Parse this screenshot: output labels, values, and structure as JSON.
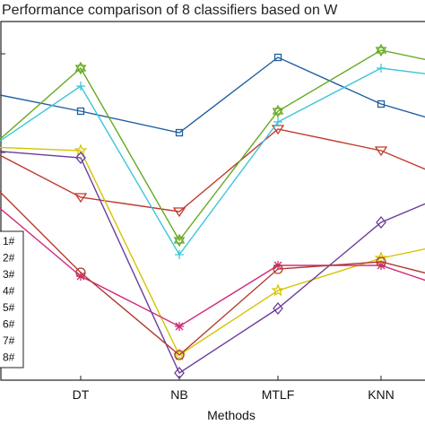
{
  "chart_data": {
    "type": "line",
    "title": "Performance comparison of 8 classifiers  based on W",
    "xlabel": "Methods",
    "ylabel": "",
    "categories": [
      "",
      "DT",
      "NB",
      "MTLF",
      "KNN",
      ""
    ],
    "ylim": [
      0,
      100
    ],
    "grid": false,
    "legend_position": "left",
    "series": [
      {
        "name": "1#",
        "color": "#1f5f9e",
        "marker": "square",
        "values": [
          80,
          75,
          69,
          90,
          77,
          70
        ]
      },
      {
        "name": "2#",
        "color": "#c0392b",
        "marker": "triangle",
        "values": [
          64,
          51,
          47,
          70,
          64,
          54
        ]
      },
      {
        "name": "3#",
        "color": "#d4c400",
        "marker": "star",
        "values": [
          65,
          64,
          7,
          25,
          34,
          39
        ]
      },
      {
        "name": "4#",
        "color": "#d12c7c",
        "marker": "asterisk",
        "values": [
          50,
          29,
          15,
          32,
          32,
          24
        ]
      },
      {
        "name": "5#",
        "color": "#66aa22",
        "marker": "hexagram",
        "values": [
          65,
          87,
          39,
          75,
          92,
          87
        ]
      },
      {
        "name": "6#",
        "color": "#3cc6d6",
        "marker": "plus",
        "values": [
          65,
          82,
          35,
          72,
          87,
          84
        ]
      },
      {
        "name": "7#",
        "color": "#6a3d9a",
        "marker": "diamond",
        "values": [
          64,
          62,
          2,
          20,
          44,
          54
        ]
      },
      {
        "name": "8#",
        "color": "#b03a2e",
        "marker": "circle",
        "values": [
          55,
          30,
          7,
          31,
          33,
          27
        ]
      }
    ]
  }
}
